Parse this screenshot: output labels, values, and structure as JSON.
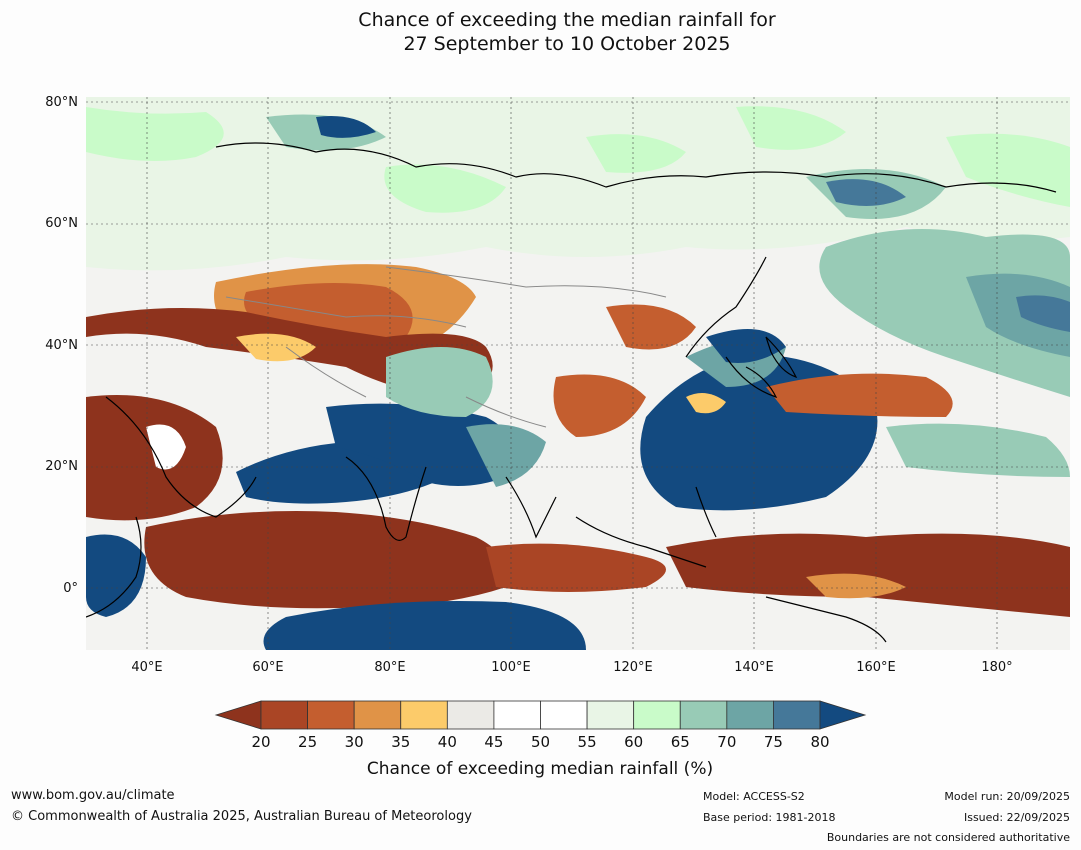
{
  "title": {
    "line1": "Chance of exceeding the median rainfall for",
    "line2": "27 September to 10 October 2025"
  },
  "map": {
    "lat_labels": [
      "80°N",
      "60°N",
      "40°N",
      "20°N",
      "0°"
    ],
    "lon_labels": [
      "40°E",
      "60°E",
      "80°E",
      "100°E",
      "120°E",
      "140°E",
      "160°E",
      "180°"
    ],
    "lat_range": [
      -10,
      81
    ],
    "lon_range": [
      30,
      192
    ]
  },
  "colorbar": {
    "ticks": [
      "20",
      "25",
      "30",
      "35",
      "40",
      "45",
      "50",
      "55",
      "60",
      "65",
      "70",
      "75",
      "80"
    ],
    "under_color": "#8e331d",
    "over_color": "#134a80",
    "colors": [
      "#aa4525",
      "#c45e2f",
      "#e09347",
      "#fccb6a",
      "#ebeae6",
      "#ffffff",
      "#ffffff",
      "#e9f5e6",
      "#c9fbc9",
      "#98cbb6",
      "#6da5a5",
      "#457899"
    ],
    "title": "Chance of exceeding median rainfall (%)"
  },
  "footer": {
    "url": "www.bom.gov.au/climate",
    "copyright": "© Commonwealth of Australia 2025, Australian Bureau of Meteorology",
    "model": "Model: ACCESS-S2",
    "base_period": "Base period: 1981-2018",
    "model_run": "Model run: 20/09/2025",
    "issued": "Issued: 22/09/2025",
    "disclaimer": "Boundaries are not considered authoritative"
  }
}
